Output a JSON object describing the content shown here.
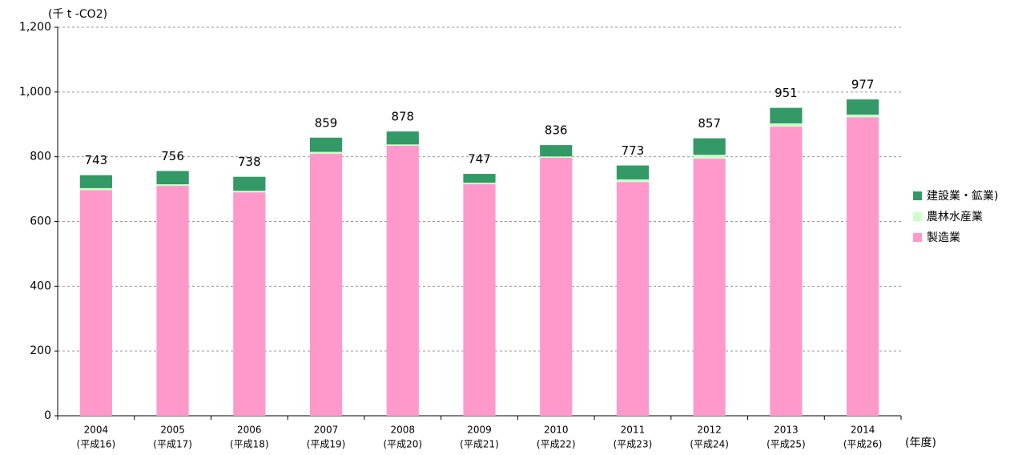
{
  "chart_data": {
    "type": "stacked_bar",
    "y_unit_label": "(千 t -CO2)",
    "x_unit_label": "(年度)",
    "categories": [
      [
        "2004",
        "(平成16)"
      ],
      [
        "2005",
        "(平成17)"
      ],
      [
        "2006",
        "(平成18)"
      ],
      [
        "2007",
        "(平成19)"
      ],
      [
        "2008",
        "(平成20)"
      ],
      [
        "2009",
        "(平成21)"
      ],
      [
        "2010",
        "(平成22)"
      ],
      [
        "2011",
        "(平成23)"
      ],
      [
        "2012",
        "(平成24)"
      ],
      [
        "2013",
        "(平成25)"
      ],
      [
        "2014",
        "(平成26)"
      ]
    ],
    "series": [
      {
        "name": "製造業",
        "color": "#ff99cc",
        "values": [
          697,
          710,
          690,
          809,
          834,
          715,
          797,
          722,
          794,
          893,
          922
        ]
      },
      {
        "name": "農林水産業",
        "color": "#ccffcc",
        "values": [
          6,
          5,
          5,
          6,
          4,
          5,
          4,
          8,
          12,
          10,
          8
        ]
      },
      {
        "name": "建設業・鉱業)",
        "color": "#339966",
        "values": [
          40,
          41,
          43,
          44,
          40,
          27,
          35,
          43,
          51,
          48,
          47
        ]
      }
    ],
    "totals": [
      743,
      756,
      738,
      859,
      878,
      747,
      836,
      773,
      857,
      951,
      977
    ],
    "ylim": [
      0,
      1200
    ],
    "yticks": [
      0,
      200,
      400,
      600,
      800,
      {
        "value": 1000,
        "label": "1,000"
      },
      {
        "value": 1200,
        "label": "1,200"
      }
    ],
    "grid": true,
    "legend": "right"
  }
}
